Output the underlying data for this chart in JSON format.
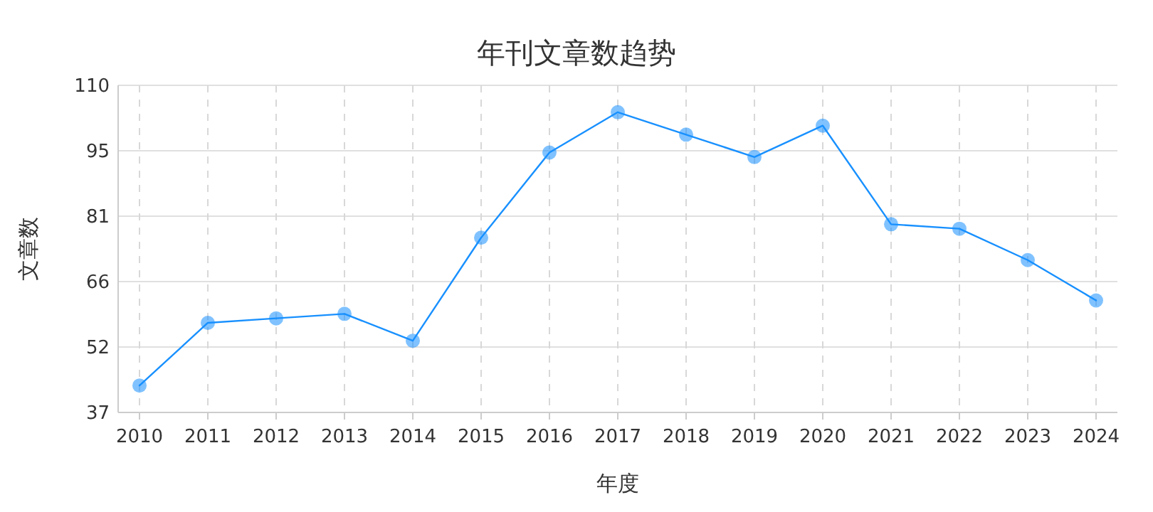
{
  "chart_data": {
    "type": "line",
    "title": "年刊文章数趋势",
    "xlabel": "年度",
    "ylabel": "文章数",
    "categories": [
      "2010",
      "2011",
      "2012",
      "2013",
      "2014",
      "2015",
      "2016",
      "2017",
      "2018",
      "2019",
      "2020",
      "2021",
      "2022",
      "2023",
      "2024"
    ],
    "series": [
      {
        "color": "#1890ff",
        "values": [
          43,
          57,
          58,
          59,
          53,
          76,
          95,
          104,
          99,
          94,
          101,
          79,
          78,
          71,
          62
        ]
      }
    ],
    "ylim": [
      37,
      110
    ],
    "yticks": [
      37,
      {
        "value": 51.6,
        "label": "52"
      },
      {
        "value": 66.2,
        "label": "66"
      },
      {
        "value": 80.8,
        "label": "81"
      },
      {
        "value": 95.4,
        "label": "95"
      },
      110
    ],
    "grid": true,
    "marker": "circle",
    "line_style": "solid"
  }
}
